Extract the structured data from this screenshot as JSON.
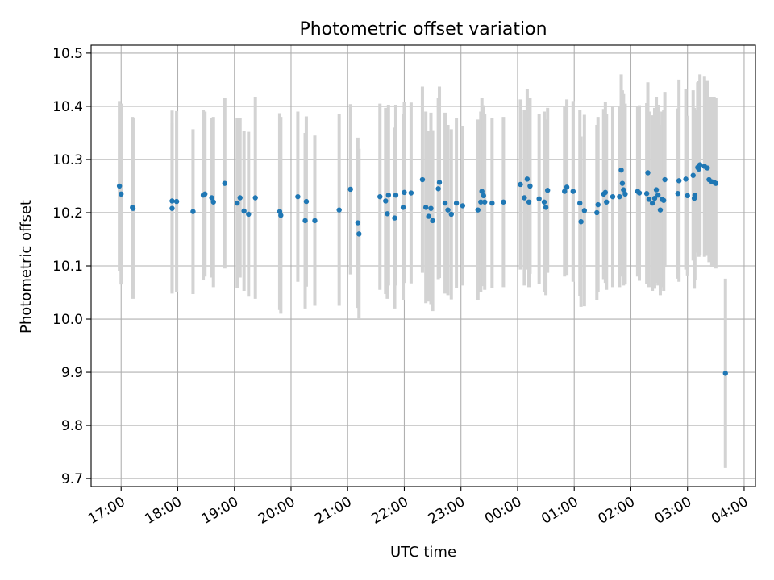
{
  "chart_data": {
    "type": "scatter",
    "title": "Photometric offset variation",
    "xlabel": "UTC time",
    "ylabel": "Photometric offset",
    "x_tick_labels": [
      "17:00",
      "18:00",
      "19:00",
      "20:00",
      "21:00",
      "22:00",
      "23:00",
      "00:00",
      "01:00",
      "02:00",
      "03:00",
      "04:00"
    ],
    "x_unit": "hours since 17:00 UTC",
    "x_ticks": [
      0,
      1,
      2,
      3,
      4,
      5,
      6,
      7,
      8,
      9,
      10,
      11
    ],
    "xlim": [
      -0.53,
      11.2
    ],
    "y_ticks": [
      9.7,
      9.8,
      9.9,
      10.0,
      10.1,
      10.2,
      10.3,
      10.4,
      10.5
    ],
    "y_tick_labels": [
      "9.7",
      "9.8",
      "9.9",
      "10.0",
      "10.1",
      "10.2",
      "10.3",
      "10.4",
      "10.5"
    ],
    "ylim": [
      9.685,
      10.515
    ],
    "grid": true,
    "colors": {
      "point": "#1f77b4",
      "errorbar": "#d3d3d3",
      "grid": "#b0b0b0"
    },
    "points": [
      [
        -0.03,
        10.25,
        0.16
      ],
      [
        0.0,
        10.235,
        0.17
      ],
      [
        0.2,
        10.21,
        0.17
      ],
      [
        0.21,
        10.208,
        0.17
      ],
      [
        0.9,
        10.208,
        0.16
      ],
      [
        0.9,
        10.222,
        0.17
      ],
      [
        0.98,
        10.221,
        0.17
      ],
      [
        1.27,
        10.202,
        0.155
      ],
      [
        1.45,
        10.233,
        0.16
      ],
      [
        1.48,
        10.235,
        0.155
      ],
      [
        1.6,
        10.228,
        0.15
      ],
      [
        1.63,
        10.22,
        0.16
      ],
      [
        1.83,
        10.255,
        0.16
      ],
      [
        2.05,
        10.218,
        0.16
      ],
      [
        2.1,
        10.228,
        0.15
      ],
      [
        2.17,
        10.203,
        0.15
      ],
      [
        2.25,
        10.197,
        0.155
      ],
      [
        2.37,
        10.228,
        0.19
      ],
      [
        2.8,
        10.202,
        0.185
      ],
      [
        2.82,
        10.195,
        0.185
      ],
      [
        3.12,
        10.23,
        0.16
      ],
      [
        3.25,
        10.185,
        0.165
      ],
      [
        3.27,
        10.221,
        0.16
      ],
      [
        3.42,
        10.185,
        0.16
      ],
      [
        3.85,
        10.205,
        0.18
      ],
      [
        4.05,
        10.244,
        0.16
      ],
      [
        4.18,
        10.181,
        0.16
      ],
      [
        4.2,
        10.16,
        0.16
      ],
      [
        4.57,
        10.23,
        0.175
      ],
      [
        4.67,
        10.222,
        0.175
      ],
      [
        4.7,
        10.198,
        0.16
      ],
      [
        4.72,
        10.233,
        0.17
      ],
      [
        4.83,
        10.19,
        0.17
      ],
      [
        4.85,
        10.233,
        0.17
      ],
      [
        4.98,
        10.21,
        0.175
      ],
      [
        5.0,
        10.238,
        0.17
      ],
      [
        5.12,
        10.237,
        0.17
      ],
      [
        5.32,
        10.262,
        0.175
      ],
      [
        5.38,
        10.21,
        0.18
      ],
      [
        5.43,
        10.193,
        0.16
      ],
      [
        5.47,
        10.208,
        0.18
      ],
      [
        5.5,
        10.185,
        0.17
      ],
      [
        5.6,
        10.245,
        0.17
      ],
      [
        5.62,
        10.257,
        0.18
      ],
      [
        5.72,
        10.218,
        0.17
      ],
      [
        5.77,
        10.205,
        0.16
      ],
      [
        5.83,
        10.197,
        0.16
      ],
      [
        5.92,
        10.218,
        0.16
      ],
      [
        6.03,
        10.213,
        0.15
      ],
      [
        6.3,
        10.205,
        0.17
      ],
      [
        6.35,
        10.22,
        0.17
      ],
      [
        6.37,
        10.24,
        0.175
      ],
      [
        6.4,
        10.232,
        0.17
      ],
      [
        6.42,
        10.22,
        0.165
      ],
      [
        6.55,
        10.218,
        0.16
      ],
      [
        6.75,
        10.22,
        0.16
      ],
      [
        7.05,
        10.253,
        0.16
      ],
      [
        7.12,
        10.228,
        0.165
      ],
      [
        7.17,
        10.263,
        0.17
      ],
      [
        7.2,
        10.22,
        0.16
      ],
      [
        7.22,
        10.25,
        0.165
      ],
      [
        7.38,
        10.226,
        0.16
      ],
      [
        7.47,
        10.22,
        0.17
      ],
      [
        7.5,
        10.21,
        0.165
      ],
      [
        7.53,
        10.242,
        0.155
      ],
      [
        7.83,
        10.24,
        0.16
      ],
      [
        7.87,
        10.248,
        0.165
      ],
      [
        7.98,
        10.24,
        0.17
      ],
      [
        8.1,
        10.218,
        0.175
      ],
      [
        8.12,
        10.183,
        0.16
      ],
      [
        8.18,
        10.204,
        0.18
      ],
      [
        8.4,
        10.2,
        0.165
      ],
      [
        8.42,
        10.215,
        0.165
      ],
      [
        8.52,
        10.235,
        0.16
      ],
      [
        8.55,
        10.238,
        0.17
      ],
      [
        8.57,
        10.22,
        0.165
      ],
      [
        8.68,
        10.23,
        0.17
      ],
      [
        8.8,
        10.23,
        0.17
      ],
      [
        8.83,
        10.28,
        0.18
      ],
      [
        8.85,
        10.255,
        0.175
      ],
      [
        8.87,
        10.243,
        0.18
      ],
      [
        8.9,
        10.235,
        0.17
      ],
      [
        9.12,
        10.24,
        0.16
      ],
      [
        9.15,
        10.237,
        0.165
      ],
      [
        9.28,
        10.236,
        0.17
      ],
      [
        9.3,
        10.275,
        0.17
      ],
      [
        9.32,
        10.225,
        0.165
      ],
      [
        9.38,
        10.218,
        0.165
      ],
      [
        9.42,
        10.227,
        0.17
      ],
      [
        9.45,
        10.243,
        0.175
      ],
      [
        9.48,
        10.233,
        0.17
      ],
      [
        9.52,
        10.205,
        0.16
      ],
      [
        9.55,
        10.225,
        0.165
      ],
      [
        9.58,
        10.223,
        0.17
      ],
      [
        9.6,
        10.262,
        0.165
      ],
      [
        9.83,
        10.236,
        0.16
      ],
      [
        9.85,
        10.26,
        0.19
      ],
      [
        9.97,
        10.263,
        0.17
      ],
      [
        10.0,
        10.232,
        0.15
      ],
      [
        10.1,
        10.27,
        0.16
      ],
      [
        10.12,
        10.227,
        0.17
      ],
      [
        10.13,
        10.233,
        0.16
      ],
      [
        10.18,
        10.285,
        0.16
      ],
      [
        10.2,
        10.282,
        0.165
      ],
      [
        10.22,
        10.29,
        0.17
      ],
      [
        10.3,
        10.287,
        0.17
      ],
      [
        10.35,
        10.284,
        0.165
      ],
      [
        10.38,
        10.262,
        0.155
      ],
      [
        10.43,
        10.258,
        0.16
      ],
      [
        10.47,
        10.257,
        0.16
      ],
      [
        10.5,
        10.255,
        0.16
      ],
      [
        10.67,
        9.898,
        0.178
      ]
    ]
  }
}
